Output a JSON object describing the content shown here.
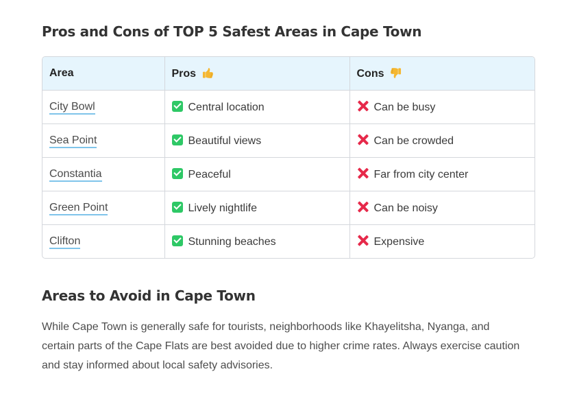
{
  "section1": {
    "title": "Pros and Cons of TOP 5 Safest Areas in Cape Town"
  },
  "table": {
    "headers": {
      "area": "Area",
      "pros": "Pros",
      "pros_icon": "thumbs-up-emoji",
      "cons": "Cons",
      "cons_icon": "thumbs-down-emoji"
    },
    "rows": [
      {
        "area": "City Bowl",
        "pro": "Central location",
        "con": "Can be busy"
      },
      {
        "area": "Sea Point",
        "pro": "Beautiful views",
        "con": "Can be crowded"
      },
      {
        "area": "Constantia",
        "pro": "Peaceful",
        "con": "Far from city center"
      },
      {
        "area": "Green Point",
        "pro": "Lively nightlife",
        "con": "Can be noisy"
      },
      {
        "area": "Clifton",
        "pro": "Stunning beaches",
        "con": "Expensive"
      }
    ],
    "pro_icon": "check-mark-button-icon",
    "con_icon": "cross-mark-icon"
  },
  "section2": {
    "title": "Areas to Avoid in Cape Town",
    "body": "While Cape Town is generally safe for tourists, neighborhoods like Khayelitsha, Nyanga, and certain parts of the Cape Flats are best avoided due to higher crime rates. Always exercise caution and stay informed about local safety advisories."
  },
  "colors": {
    "header_bg": "#e6f5fd",
    "link_underline": "#7fc4ea",
    "check_green": "#2ec866",
    "cross_red": "#e6294a"
  }
}
